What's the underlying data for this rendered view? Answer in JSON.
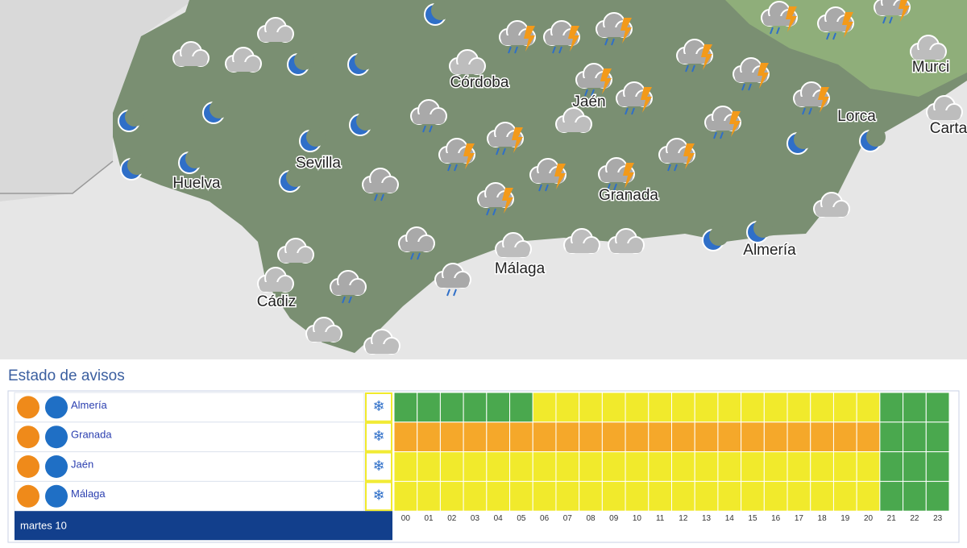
{
  "map": {
    "cities": [
      "Córdoba",
      "Jaén",
      "Sevilla",
      "Huelva",
      "Granada",
      "Almería",
      "Lorca",
      "Murci",
      "Carta",
      "Málaga",
      "Cádiz"
    ]
  },
  "warnings": {
    "title": "Estado de avisos",
    "day": "martes 10",
    "hours": [
      "00",
      "01",
      "02",
      "03",
      "04",
      "05",
      "06",
      "07",
      "08",
      "09",
      "10",
      "11",
      "12",
      "13",
      "14",
      "15",
      "16",
      "17",
      "18",
      "19",
      "20",
      "21",
      "22",
      "23"
    ],
    "level_colors": {
      "green": "#4aa84e",
      "yellow": "#f1ea2c",
      "orange": "#f5a82a"
    },
    "rows": [
      {
        "province": "Almería",
        "levels": [
          "green",
          "green",
          "green",
          "green",
          "green",
          "green",
          "yellow",
          "yellow",
          "yellow",
          "yellow",
          "yellow",
          "yellow",
          "yellow",
          "yellow",
          "yellow",
          "yellow",
          "yellow",
          "yellow",
          "yellow",
          "yellow",
          "yellow",
          "green",
          "green",
          "green"
        ]
      },
      {
        "province": "Granada",
        "levels": [
          "orange",
          "orange",
          "orange",
          "orange",
          "orange",
          "orange",
          "orange",
          "orange",
          "orange",
          "orange",
          "orange",
          "orange",
          "orange",
          "orange",
          "orange",
          "orange",
          "orange",
          "orange",
          "orange",
          "orange",
          "orange",
          "green",
          "green",
          "green"
        ]
      },
      {
        "province": "Jaén",
        "levels": [
          "yellow",
          "yellow",
          "yellow",
          "yellow",
          "yellow",
          "yellow",
          "yellow",
          "yellow",
          "yellow",
          "yellow",
          "yellow",
          "yellow",
          "yellow",
          "yellow",
          "yellow",
          "yellow",
          "yellow",
          "yellow",
          "yellow",
          "yellow",
          "yellow",
          "green",
          "green",
          "green"
        ]
      },
      {
        "province": "Málaga",
        "levels": [
          "yellow",
          "yellow",
          "yellow",
          "yellow",
          "yellow",
          "yellow",
          "yellow",
          "yellow",
          "yellow",
          "yellow",
          "yellow",
          "yellow",
          "yellow",
          "yellow",
          "yellow",
          "yellow",
          "yellow",
          "yellow",
          "yellow",
          "yellow",
          "yellow",
          "green",
          "green",
          "green"
        ]
      }
    ]
  }
}
